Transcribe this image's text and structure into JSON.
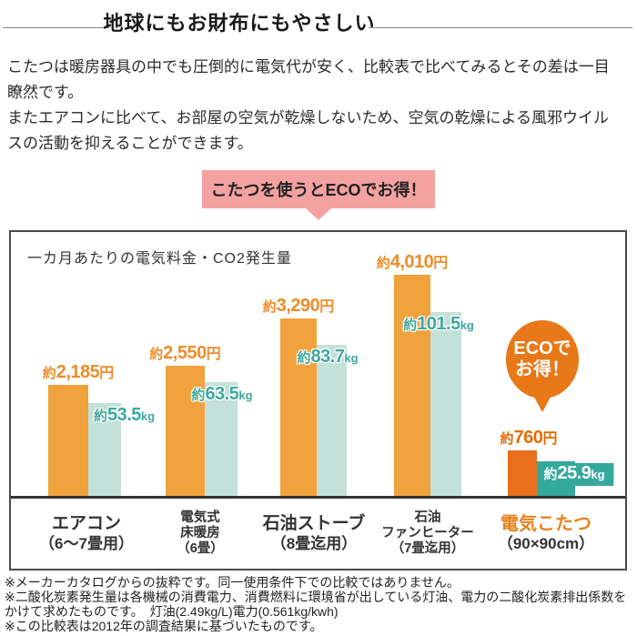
{
  "header": {
    "title": "地球にもお財布にもやさしい"
  },
  "intro_lines": [
    "こたつは暖房器具の中でも圧倒的に電気代が安く、比較表で比べてみるとその差は一目",
    "瞭然です。",
    "またエアコンに比べて、お部屋の空気が乾燥しないため、空気の乾燥による風邪ウイル",
    "スの活動を抑えることができます。"
  ],
  "callout": {
    "text": "こたつを使うとECOでお得！"
  },
  "badge": {
    "line1": "ECOで",
    "line2": "お得！"
  },
  "colors": {
    "cost_bar": "#f0a23c",
    "cost_bar_highlight": "#e8701c",
    "co2_bar": "#c3e1d9",
    "co2_bar_highlight": "#35a89c",
    "callout_pink": "#f4a2a1",
    "badge_orange": "#e87818",
    "highlight_text_orange": "#e8821e",
    "co2_text_teal": "#3fa89d"
  },
  "chart_data": {
    "type": "bar",
    "title": "一カ月あたりの電気料金・CO2発生量",
    "categories": [
      "エアコン（6～7畳用）",
      "電気式床暖房（6畳）",
      "石油ストーブ（8畳迄用）",
      "石油ファンヒーター（7畳迄用）",
      "電気こたつ（90×90cm）"
    ],
    "categories_lines": [
      [
        "エアコン",
        "（6～7畳用）"
      ],
      [
        "電気式",
        "床暖房",
        "（6畳）"
      ],
      [
        "石油ストーブ",
        "（8畳迄用）"
      ],
      [
        "石油",
        "ファンヒーター",
        "（7畳迄用）"
      ],
      [
        "電気こたつ",
        "（90×90cm）"
      ]
    ],
    "series": [
      {
        "name": "電気料金（円／月）",
        "values": [
          2185,
          2550,
          3290,
          4010,
          760
        ],
        "labels": [
          "約2,185円",
          "約2,550円",
          "約3,290円",
          "約4,010円",
          "約760円"
        ],
        "color": "#f0a23c",
        "highlight_color": "#e8701c"
      },
      {
        "name": "CO2発生量（kg／月）",
        "values": [
          53.5,
          63.5,
          83.7,
          101.5,
          25.9
        ],
        "labels": [
          "約53.5kg",
          "約63.5kg",
          "約83.7kg",
          "約101.5kg",
          "約25.9kg"
        ],
        "color": "#c3e1d9",
        "highlight_color": "#35a89c"
      }
    ],
    "highlight_index": 4,
    "legend_position": "none",
    "grid": false
  },
  "notes_lines": [
    "※メーカーカタログからの抜粋です。同一使用条件下での比較ではありません。",
    "※二酸化炭素発生量は各機械の消費電力、消費燃料に環境省が出している灯油、電力の二酸化炭素排出係数を",
    "かけて求めたものです。　灯油(2.49kg/L)電力(0.561kg/kwh)",
    "※この比較表は2012年の調査結果に基づいたものです。"
  ]
}
